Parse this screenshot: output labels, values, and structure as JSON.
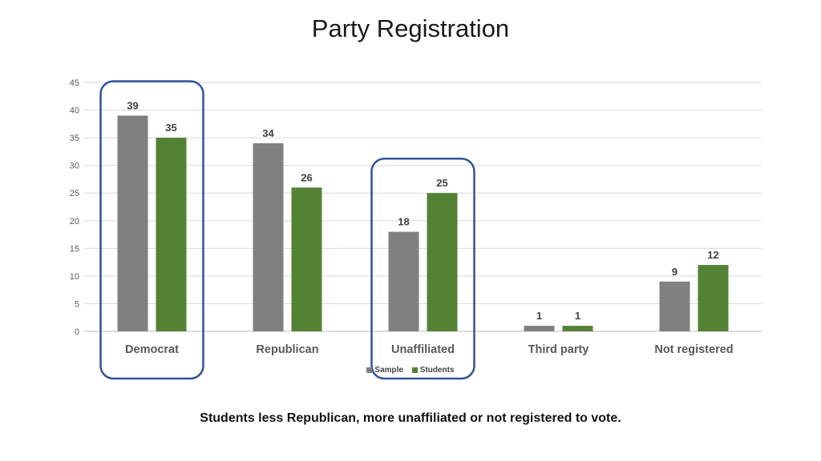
{
  "slide": {
    "title": "Party Registration",
    "caption": "Students less Republican, more unaffiliated or not registered to vote."
  },
  "colors": {
    "sample": "#808080",
    "students": "#548235",
    "highlight": "#2F5597",
    "grid": "#d9d9d9"
  },
  "chart_data": {
    "type": "bar",
    "title": "",
    "xlabel": "",
    "ylabel": "",
    "ylim": [
      0,
      45
    ],
    "yticks": [
      0,
      5,
      10,
      15,
      20,
      25,
      30,
      35,
      40,
      45
    ],
    "grid": true,
    "legend_position": "bottom",
    "categories": [
      "Democrat",
      "Republican",
      "Unaffiliated",
      "Third party",
      "Not registered"
    ],
    "series": [
      {
        "name": "Sample",
        "values": [
          39,
          34,
          18,
          1,
          9
        ]
      },
      {
        "name": "Students",
        "values": [
          35,
          26,
          25,
          1,
          12
        ]
      }
    ],
    "highlighted_categories": [
      "Democrat",
      "Unaffiliated"
    ]
  }
}
